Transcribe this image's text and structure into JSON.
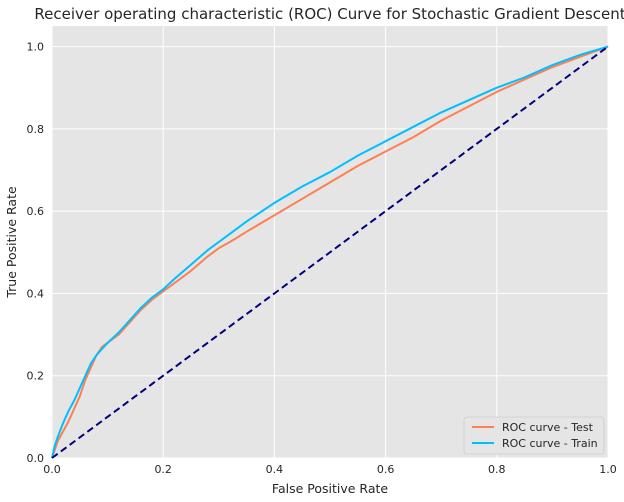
{
  "chart_data": {
    "type": "line",
    "title": "Receiver operating characteristic (ROC) Curve for Stochastic Gradient Descent",
    "xlabel": "False Positive Rate",
    "ylabel": "True Positive Rate",
    "xlim": [
      0,
      1
    ],
    "ylim": [
      0,
      1.05
    ],
    "x_ticks": [
      "0.0",
      "0.2",
      "0.4",
      "0.6",
      "0.8",
      "1.0"
    ],
    "y_ticks": [
      "0.0",
      "0.2",
      "0.4",
      "0.6",
      "0.8",
      "1.0"
    ],
    "grid": true,
    "legend_position": "lower-right",
    "background_color": "#e5e5e5",
    "series": [
      {
        "name": "ROC curve - Test",
        "color": "#ff7f50",
        "line_style": "solid",
        "x": [
          0.0,
          0.005,
          0.01,
          0.02,
          0.03,
          0.04,
          0.05,
          0.06,
          0.07,
          0.08,
          0.09,
          0.1,
          0.12,
          0.14,
          0.16,
          0.18,
          0.2,
          0.22,
          0.25,
          0.28,
          0.3,
          0.32,
          0.35,
          0.4,
          0.45,
          0.5,
          0.55,
          0.6,
          0.65,
          0.7,
          0.75,
          0.8,
          0.85,
          0.9,
          0.95,
          1.0
        ],
        "y": [
          0.0,
          0.02,
          0.04,
          0.065,
          0.09,
          0.12,
          0.15,
          0.19,
          0.22,
          0.25,
          0.27,
          0.28,
          0.3,
          0.33,
          0.36,
          0.385,
          0.405,
          0.425,
          0.455,
          0.49,
          0.51,
          0.525,
          0.55,
          0.59,
          0.63,
          0.67,
          0.71,
          0.745,
          0.78,
          0.82,
          0.855,
          0.89,
          0.92,
          0.95,
          0.975,
          1.0
        ]
      },
      {
        "name": "ROC curve - Train",
        "color": "#00bfff",
        "line_style": "solid",
        "x": [
          0.0,
          0.005,
          0.01,
          0.02,
          0.03,
          0.04,
          0.05,
          0.06,
          0.07,
          0.08,
          0.09,
          0.1,
          0.12,
          0.14,
          0.16,
          0.18,
          0.2,
          0.22,
          0.25,
          0.28,
          0.3,
          0.32,
          0.35,
          0.4,
          0.45,
          0.5,
          0.55,
          0.6,
          0.65,
          0.7,
          0.75,
          0.8,
          0.85,
          0.9,
          0.95,
          1.0
        ],
        "y": [
          0.0,
          0.03,
          0.05,
          0.085,
          0.115,
          0.14,
          0.17,
          0.2,
          0.23,
          0.25,
          0.265,
          0.28,
          0.305,
          0.335,
          0.365,
          0.39,
          0.41,
          0.435,
          0.47,
          0.505,
          0.525,
          0.545,
          0.575,
          0.62,
          0.66,
          0.695,
          0.735,
          0.77,
          0.805,
          0.84,
          0.87,
          0.9,
          0.925,
          0.955,
          0.98,
          1.0
        ]
      },
      {
        "name": "",
        "color": "#000080",
        "line_style": "dashed",
        "x": [
          0,
          1
        ],
        "y": [
          0,
          1
        ]
      }
    ]
  }
}
